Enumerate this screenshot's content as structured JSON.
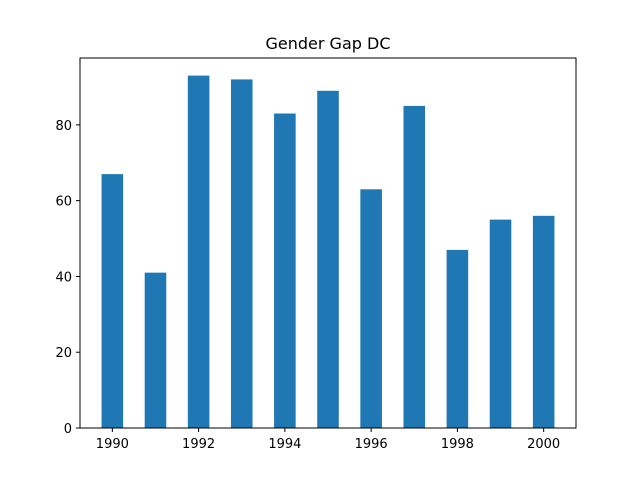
{
  "chart_data": {
    "type": "bar",
    "title": "Gender Gap DC",
    "xlabel": "",
    "ylabel": "",
    "x": [
      1990,
      1991,
      1992,
      1993,
      1994,
      1995,
      1996,
      1997,
      1998,
      1999,
      2000
    ],
    "values": [
      67,
      41,
      93,
      92,
      83,
      89,
      63,
      85,
      47,
      55,
      56
    ],
    "xlim": [
      1989.25,
      2000.75
    ],
    "ylim": [
      0,
      97.65
    ],
    "x_ticks": [
      1990,
      1992,
      1994,
      1996,
      1998,
      2000
    ],
    "y_ticks": [
      0,
      20,
      40,
      60,
      80
    ],
    "bar_color": "#1f77b4",
    "grid": false,
    "legend": "none"
  }
}
